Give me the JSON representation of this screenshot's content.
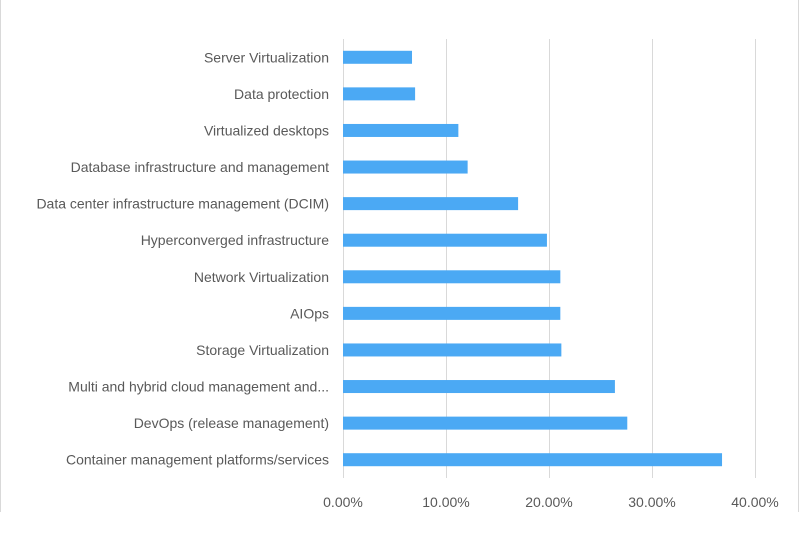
{
  "chart_data": {
    "type": "bar",
    "orientation": "horizontal",
    "categories": [
      "Server Virtualization",
      "Data protection",
      "Virtualized desktops",
      "Database infrastructure and management",
      "Data center infrastructure management (DCIM)",
      "Hyperconverged infrastructure",
      "Network Virtualization",
      "AIOps",
      "Storage Virtualization",
      "Multi and hybrid cloud management and...",
      "DevOps (release management)",
      "Container management platforms/services"
    ],
    "values": [
      6.7,
      7.0,
      11.2,
      12.1,
      17.0,
      19.8,
      21.1,
      21.1,
      21.2,
      26.4,
      27.6,
      36.8
    ],
    "xlim": [
      0,
      40
    ],
    "x_ticks": [
      0,
      10,
      20,
      30,
      40
    ],
    "x_tick_labels": [
      "0.00%",
      "10.00%",
      "20.00%",
      "30.00%",
      "40.00%"
    ],
    "title": "",
    "xlabel": "",
    "ylabel": "",
    "grid": "vertical",
    "legend": "none",
    "bar_color": "#4ba9f4",
    "grid_color": "#d9d9d9",
    "text_color": "#595959"
  }
}
